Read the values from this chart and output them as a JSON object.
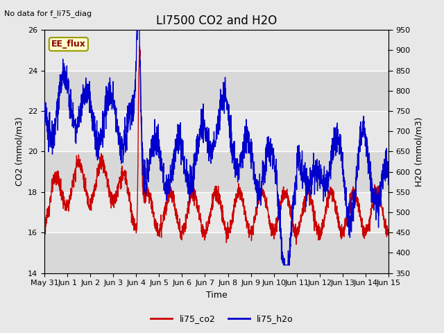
{
  "title": "LI7500 CO2 and H2O",
  "no_data_text": "No data for f_li75_diag",
  "xlabel": "Time",
  "ylabel_left": "CO2 (mmol/m3)",
  "ylabel_right": "H2O (mmol/m3)",
  "ylim_left": [
    14,
    26
  ],
  "ylim_right": [
    350,
    950
  ],
  "yticks_left": [
    14,
    16,
    18,
    20,
    22,
    24,
    26
  ],
  "yticks_right": [
    350,
    400,
    450,
    500,
    550,
    600,
    650,
    700,
    750,
    800,
    850,
    900,
    950
  ],
  "xtick_labels": [
    "May 31",
    "Jun 1",
    "Jun 2",
    "Jun 3",
    "Jun 4",
    "Jun 5",
    "Jun 6",
    "Jun 7",
    "Jun 8",
    "Jun 9",
    "Jun 10",
    "Jun 11",
    "Jun 12",
    "Jun 13",
    "Jun 14",
    "Jun 15"
  ],
  "color_co2": "#cc0000",
  "color_h2o": "#0000cc",
  "legend_label_co2": "li75_co2",
  "legend_label_h2o": "li75_h2o",
  "ee_flux_label": "EE_flux",
  "ee_flux_bg": "#ffffcc",
  "ee_flux_border": "#999900",
  "bg_color": "#e8e8e8",
  "plot_bg_light": "#e8e8e8",
  "plot_bg_dark": "#d0d0d0",
  "grid_color": "#ffffff",
  "title_fontsize": 12,
  "label_fontsize": 9,
  "tick_fontsize": 8,
  "no_data_fontsize": 8
}
